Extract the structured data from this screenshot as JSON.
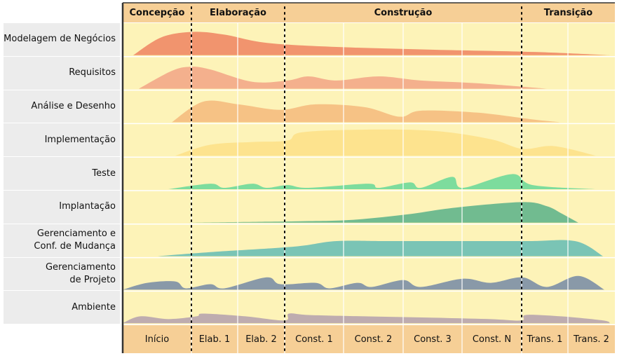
{
  "phases": [
    {
      "label": "Concepção",
      "x0": 175,
      "x1": 273
    },
    {
      "label": "Elaboração",
      "x0": 273,
      "x1": 406
    },
    {
      "label": "Construção",
      "x0": 406,
      "x1": 744
    },
    {
      "label": "Transição",
      "x0": 744,
      "x1": 877
    }
  ],
  "iterations": [
    {
      "label": "Início",
      "x0": 175,
      "x1": 273
    },
    {
      "label": "Elab. 1",
      "x0": 273,
      "x1": 339
    },
    {
      "label": "Elab. 2",
      "x0": 339,
      "x1": 406
    },
    {
      "label": "Const. 1",
      "x0": 406,
      "x1": 490
    },
    {
      "label": "Const. 2",
      "x0": 490,
      "x1": 575
    },
    {
      "label": "Const. 3",
      "x0": 575,
      "x1": 659
    },
    {
      "label": "Const. N",
      "x0": 659,
      "x1": 744
    },
    {
      "label": "Trans. 1",
      "x0": 744,
      "x1": 810
    },
    {
      "label": "Trans. 2",
      "x0": 810,
      "x1": 877
    }
  ],
  "disciplines": [
    {
      "label": "Modelagem de Negócios",
      "color": "#f08a66"
    },
    {
      "label": "Requisitos",
      "color": "#f3a988"
    },
    {
      "label": "Análise e Desenho",
      "color": "#f5bd80"
    },
    {
      "label": "Implementação",
      "color": "#fde18a"
    },
    {
      "label": "Teste",
      "color": "#6fd99a"
    },
    {
      "label": "Implantação",
      "color": "#62b58c"
    },
    {
      "label": "Gerenciamento e\nConf. de Mudança",
      "color": "#6cbfb5"
    },
    {
      "label": "Gerenciamento\nde Projeto",
      "color": "#7c8fa6"
    },
    {
      "label": "Ambiente",
      "color": "#b7a4ae"
    }
  ],
  "colors": {
    "grid_bg": "#fdf3b8",
    "header_bg": "#f6cf96",
    "border": "#333333",
    "divider": "#000000"
  }
}
